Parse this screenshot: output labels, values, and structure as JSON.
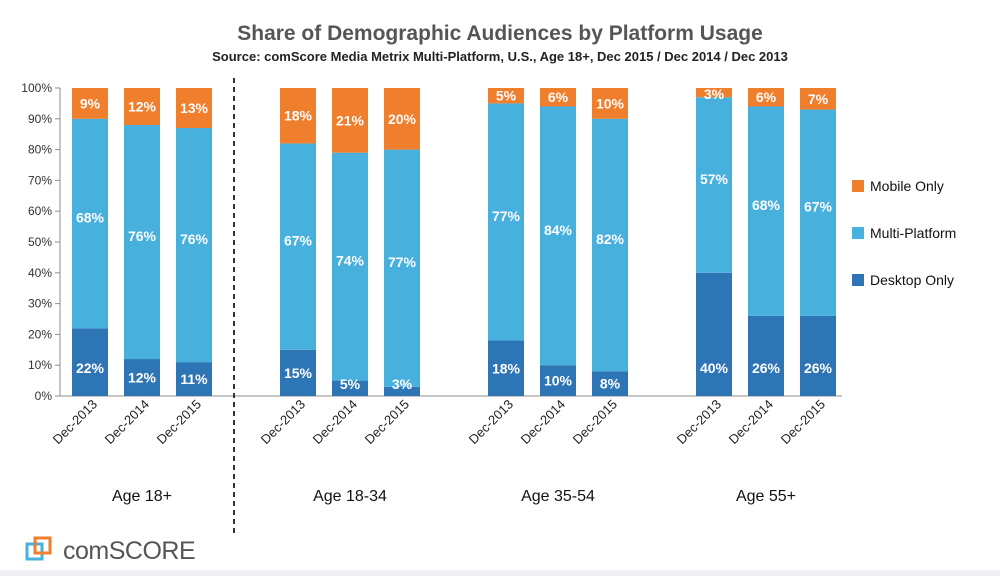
{
  "chart_data": {
    "type": "stacked-bar",
    "title": "Share of Demographic Audiences by Platform Usage",
    "subtitle": "Source: comScore Media Metrix Multi-Platform, U.S., Age 18+, Dec 2015 / Dec 2014 / Dec 2013",
    "y_ticks": [
      "0%",
      "10%",
      "20%",
      "30%",
      "40%",
      "50%",
      "60%",
      "70%",
      "80%",
      "90%",
      "100%"
    ],
    "ylim": [
      0,
      100
    ],
    "categories": [
      "Dec-2013",
      "Dec-2014",
      "Dec-2015"
    ],
    "legend": [
      {
        "name": "Mobile Only",
        "color": "#ef7e2d"
      },
      {
        "name": "Multi-Platform",
        "color": "#48b0dd"
      },
      {
        "name": "Desktop Only",
        "color": "#2e75b6"
      }
    ],
    "groups": [
      {
        "label": "Age 18+",
        "bars": [
          {
            "category": "Dec-2013",
            "desktop": 22,
            "multi": 68,
            "mobile": 9,
            "desktop_label": "22%",
            "multi_label": "68%",
            "mobile_label": "9%"
          },
          {
            "category": "Dec-2014",
            "desktop": 12,
            "multi": 76,
            "mobile": 12,
            "desktop_label": "12%",
            "multi_label": "76%",
            "mobile_label": "12%"
          },
          {
            "category": "Dec-2015",
            "desktop": 11,
            "multi": 76,
            "mobile": 13,
            "desktop_label": "11%",
            "multi_label": "76%",
            "mobile_label": "13%"
          }
        ]
      },
      {
        "label": "Age 18-34",
        "bars": [
          {
            "category": "Dec-2013",
            "desktop": 15,
            "multi": 67,
            "mobile": 18,
            "desktop_label": "15%",
            "multi_label": "67%",
            "mobile_label": "18%"
          },
          {
            "category": "Dec-2014",
            "desktop": 5,
            "multi": 74,
            "mobile": 21,
            "desktop_label": "5%",
            "multi_label": "74%",
            "mobile_label": "21%"
          },
          {
            "category": "Dec-2015",
            "desktop": 3,
            "multi": 77,
            "mobile": 20,
            "desktop_label": "3%",
            "multi_label": "77%",
            "mobile_label": "20%"
          }
        ]
      },
      {
        "label": "Age 35-54",
        "bars": [
          {
            "category": "Dec-2013",
            "desktop": 18,
            "multi": 77,
            "mobile": 5,
            "desktop_label": "18%",
            "multi_label": "77%",
            "mobile_label": "5%"
          },
          {
            "category": "Dec-2014",
            "desktop": 10,
            "multi": 84,
            "mobile": 6,
            "desktop_label": "10%",
            "multi_label": "84%",
            "mobile_label": "6%"
          },
          {
            "category": "Dec-2015",
            "desktop": 8,
            "multi": 82,
            "mobile": 10,
            "desktop_label": "8%",
            "multi_label": "82%",
            "mobile_label": "10%"
          }
        ]
      },
      {
        "label": "Age 55+",
        "bars": [
          {
            "category": "Dec-2013",
            "desktop": 40,
            "multi": 57,
            "mobile": 3,
            "desktop_label": "40%",
            "multi_label": "57%",
            "mobile_label": "3%"
          },
          {
            "category": "Dec-2014",
            "desktop": 26,
            "multi": 68,
            "mobile": 6,
            "desktop_label": "26%",
            "multi_label": "68%",
            "mobile_label": "6%"
          },
          {
            "category": "Dec-2015",
            "desktop": 26,
            "multi": 67,
            "mobile": 7,
            "desktop_label": "26%",
            "multi_label": "67%",
            "mobile_label": "7%"
          }
        ]
      }
    ]
  },
  "brand": {
    "name": "comSCORE",
    "logo_icon": "comscore-logo-icon",
    "colors": {
      "primary": "#2e75b6",
      "accent": "#ef7e2d"
    }
  }
}
